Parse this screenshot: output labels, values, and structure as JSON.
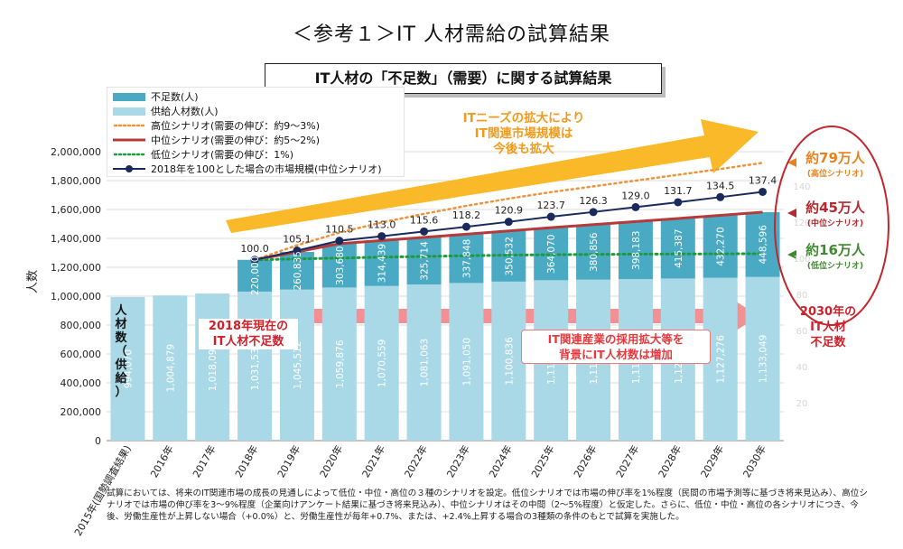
{
  "page_title": "＜参考１＞IT 人材需給の試算結果",
  "subtitle": "IT人材の「不足数」（需要）に関する試算結果",
  "legend": [
    {
      "label": "不足数(人)",
      "kind": "bar",
      "color": "#4aaac4"
    },
    {
      "label": "供給人材数(人)",
      "kind": "bar",
      "color": "#a9d9e6"
    },
    {
      "label": "高位シナリオ(需要の伸び：約9～3%)",
      "kind": "dotted",
      "color": "#f0923a"
    },
    {
      "label": "中位シナリオ(需要の伸び：約5～2%)",
      "kind": "solid",
      "color": "#b73a3a"
    },
    {
      "label": "低位シナリオ(需要の伸び：1%)",
      "kind": "dotted",
      "color": "#1e9a3e"
    },
    {
      "label": "2018年を100とした場合の市場規模(中位シナリオ)",
      "kind": "marker",
      "color": "#1b2a5c"
    }
  ],
  "annotations": {
    "it_needs": [
      "ITニーズの拡大により",
      "IT関連市場規模は",
      "今後も拡大"
    ],
    "shortage_2018": [
      "2018年現在の",
      "IT人材不足数"
    ],
    "hiring": [
      "IT関連産業の採用拡大等を",
      "背景にIT人材数は増加"
    ],
    "supply_vertical": [
      "人",
      "材",
      "数",
      "（",
      "供",
      "給",
      "）"
    ],
    "high_value": "約79万人",
    "high_label": "(高位シナリオ)",
    "mid_value": "約45万人",
    "mid_label": "(中位シナリオ)",
    "low_value": "約16万人",
    "low_label": "(低位シナリオ)",
    "shortage_2030": [
      "2030年の",
      "IT人材",
      "不足数"
    ]
  },
  "footnote": "試算においては、将来のIT関連市場の成長の見通しによって低位・中位・高位の３種のシナリオを設定。低位シナリオでは市場の伸び率を1%程度（民間の市場予測等に基づき将来見込み）、高位シナリオでは市場の伸び率を3～9%程度（企業向けアンケート結果に基づき将来見込み）、中位シナリオはその中間（2～5%程度）と仮定した。さらに、低位・中位・高位の各シナリオにつき、今後、労働生産性が上昇しない場合（+0.0%）と、労働生産性が毎年+0.7%、または、+2.4%上昇する場合の3種類の条件のもとで試算を実施した。",
  "chart_data": {
    "type": "bar",
    "ylabel": "人数",
    "ylim": [
      0,
      2000000
    ],
    "yticks": [
      "0",
      "200,000",
      "400,000",
      "600,000",
      "800,000",
      "1,000,000",
      "1,200,000",
      "1,400,000",
      "1,600,000",
      "1,800,000",
      "2,000,000"
    ],
    "categories": [
      "2015年(国勢調査結果)",
      "2016年",
      "2017年",
      "2018年",
      "2019年",
      "2020年",
      "2021年",
      "2022年",
      "2023年",
      "2024年",
      "2025年",
      "2026年",
      "2027年",
      "2028年",
      "2029年",
      "2030年"
    ],
    "supply": [
      994070,
      1004879,
      1018099,
      1031538,
      1045512,
      1059876,
      1070559,
      1081063,
      1091050,
      1100836,
      1110121,
      1114225,
      1118085,
      1122367,
      1127276,
      1133049
    ],
    "supply_labels": [
      "994,070",
      "1,004,879",
      "1,018,099",
      "1,031,538",
      "1,045,512",
      "1,059,876",
      "1,070,559",
      "1,081,063",
      "1,091,050",
      "1,100,836",
      "1,110,121",
      "1,114,225",
      "1,118,085",
      "1,122,367",
      "1,127,276",
      "1,133,049"
    ],
    "shortage": [
      null,
      null,
      null,
      220000,
      260835,
      303680,
      314439,
      325714,
      337848,
      350532,
      364070,
      380856,
      398183,
      415387,
      432270,
      448596
    ],
    "shortage_labels": [
      "",
      "",
      "",
      "220,000",
      "260,835",
      "303,680",
      "314,439",
      "325,714",
      "337,848",
      "350,532",
      "364,070",
      "380,856",
      "398,183",
      "415,387",
      "432,270",
      "448,596"
    ],
    "market_index": [
      null,
      null,
      null,
      100.0,
      105.1,
      110.5,
      113.0,
      115.6,
      118.2,
      120.9,
      123.7,
      126.3,
      129.0,
      131.7,
      134.5,
      137.4
    ],
    "market_index_labels": [
      "",
      "",
      "",
      "100.0",
      "105.1",
      "110.5",
      "113.0",
      "115.6",
      "118.2",
      "120.9",
      "123.7",
      "126.3",
      "129.0",
      "131.7",
      "134.5",
      "137.4"
    ],
    "high_scenario": [
      null,
      null,
      null,
      1251538,
      1352000,
      1440000,
      1510000,
      1570000,
      1625000,
      1675000,
      1720000,
      1760000,
      1800000,
      1840000,
      1880000,
      1923000
    ],
    "low_scenario": [
      null,
      null,
      null,
      1251538,
      1258000,
      1264000,
      1270000,
      1275000,
      1280000,
      1284000,
      1287000,
      1289000,
      1291000,
      1292000,
      1293000,
      1294000
    ],
    "right_ticks": [
      "20",
      "40",
      "60",
      "80",
      "100",
      "120",
      "140"
    ]
  }
}
